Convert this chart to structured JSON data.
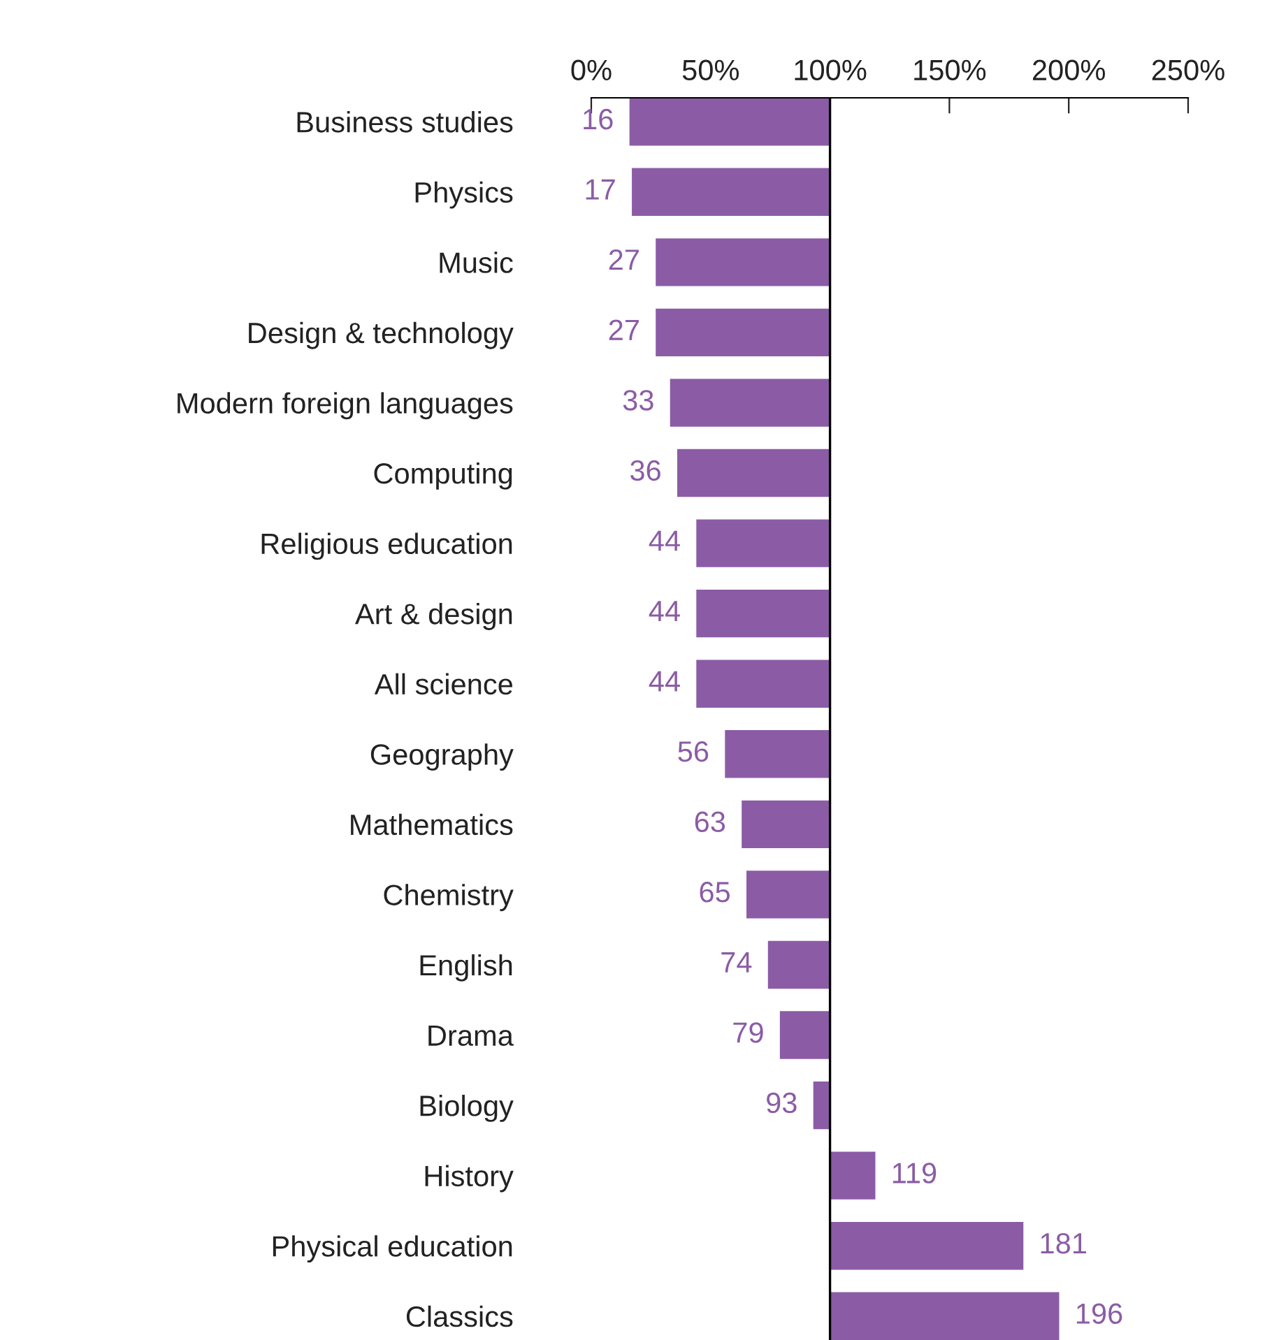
{
  "chart_data": {
    "type": "bar",
    "orientation": "horizontal",
    "categories": [
      "Business studies",
      "Physics",
      "Music",
      "Design & technology",
      "Modern foreign languages",
      "Computing",
      "Religious education",
      "Art & design",
      "All science",
      "Geography",
      "Mathematics",
      "Chemistry",
      "English",
      "Drama",
      "Biology",
      "History",
      "Physical education",
      "Classics"
    ],
    "base": [
      100,
      100,
      100,
      100,
      100,
      100,
      100,
      100,
      100,
      100,
      100,
      100,
      100,
      100,
      100,
      100,
      100,
      100
    ],
    "values": [
      -84,
      -83,
      -73,
      -73,
      -67,
      -64,
      -56,
      -56,
      -56,
      -44,
      -37,
      -35,
      -26,
      -21,
      -7,
      19,
      81,
      96
    ],
    "value_labels": [
      "16",
      "17",
      "27",
      "27",
      "33",
      "36",
      "44",
      "44",
      "44",
      "56",
      "63",
      "65",
      "74",
      "79",
      "93",
      "119",
      "181",
      "196"
    ],
    "color": "#8b5ca5",
    "xlim": [
      0,
      250
    ],
    "xticks": [
      {
        "value": 0,
        "label": "0%"
      },
      {
        "value": 50,
        "label": "50%"
      },
      {
        "value": 100,
        "label": "100%"
      },
      {
        "value": 150,
        "label": "150%"
      },
      {
        "value": 200,
        "label": "200%"
      },
      {
        "value": 250,
        "label": "250%"
      }
    ],
    "ref_lines": [
      {
        "axis": "x",
        "value": 100,
        "color": "#000000"
      }
    ],
    "grid": false
  }
}
